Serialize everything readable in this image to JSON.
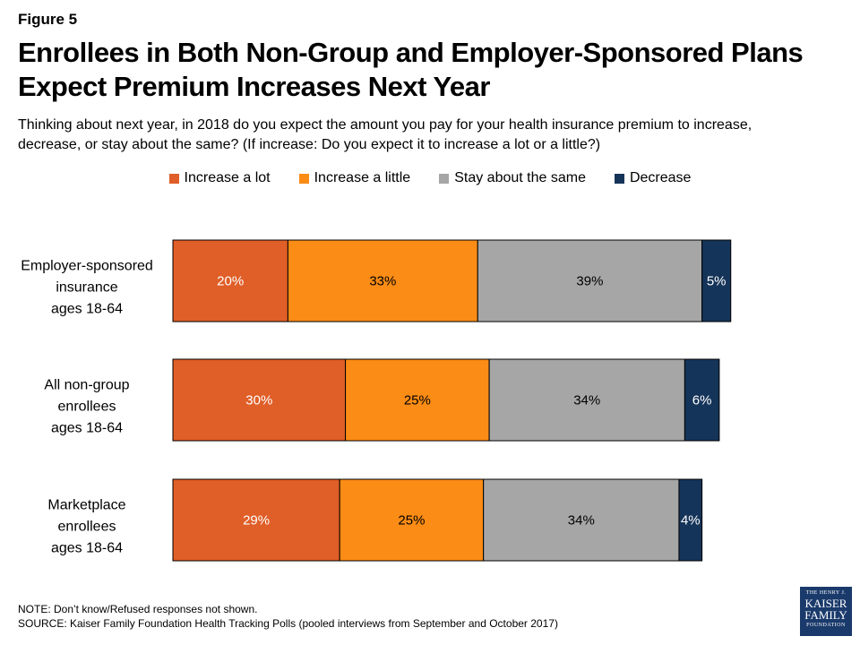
{
  "figure_label": "Figure 5",
  "title_lines": [
    "Enrollees in Both Non-Group and Employer-Sponsored Plans",
    "Expect Premium Increases Next Year"
  ],
  "subtitle_lines": [
    "Thinking about next year, in 2018 do you expect the amount you pay for your health insurance premium to increase,",
    "decrease, or stay about the same? (If increase: Do you expect it to increase a lot or a little?)"
  ],
  "chart_data": {
    "type": "bar",
    "orientation": "horizontal",
    "stacked": true,
    "categories": [
      [
        "Employer-sponsored",
        "insurance",
        "ages 18-64"
      ],
      [
        "All non-group",
        "enrollees",
        "ages 18-64"
      ],
      [
        "Marketplace",
        "enrollees",
        "ages 18-64"
      ]
    ],
    "series": [
      {
        "name": "Increase a lot",
        "color": "#e05e27",
        "values": [
          20,
          30,
          29
        ]
      },
      {
        "name": "Increase a little",
        "color": "#fb8c15",
        "values": [
          33,
          25,
          25
        ]
      },
      {
        "name": "Stay about the same",
        "color": "#a6a6a6",
        "values": [
          39,
          34,
          34
        ]
      },
      {
        "name": "Decrease",
        "color": "#153459",
        "values": [
          5,
          6,
          4
        ]
      }
    ],
    "value_suffix": "%",
    "xlim": [
      0,
      100
    ],
    "grid": false,
    "legend_position": "top"
  },
  "notes": [
    "NOTE: Don’t know/Refused responses not shown.",
    "SOURCE: Kaiser Family Foundation Health Tracking Polls (pooled interviews from September and October 2017)"
  ],
  "logo": {
    "line1": "THE HENRY J.",
    "line2": "KAISER",
    "line3": "FAMILY",
    "line4": "FOUNDATION"
  }
}
